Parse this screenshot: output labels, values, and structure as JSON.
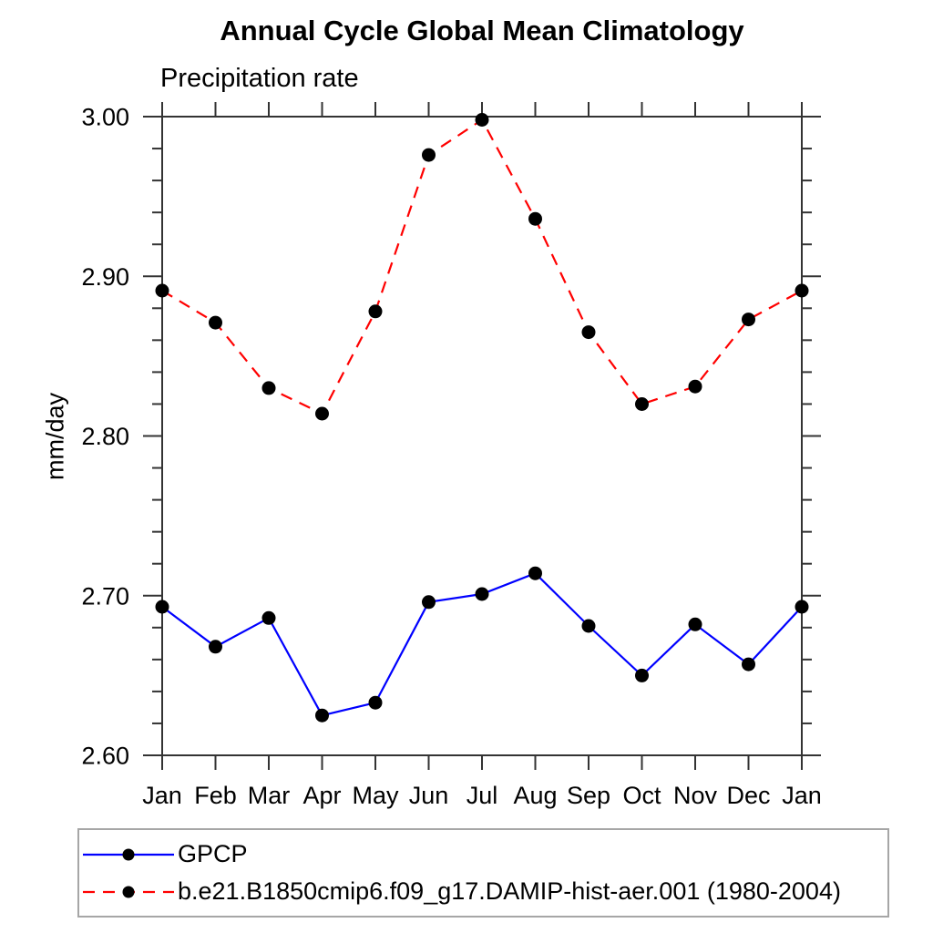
{
  "chart_data": {
    "type": "line",
    "title": "Annual Cycle Global Mean Climatology",
    "subtitle": "Precipitation rate",
    "xlabel": "",
    "ylabel": "mm/day",
    "categories": [
      "Jan",
      "Feb",
      "Mar",
      "Apr",
      "May",
      "Jun",
      "Jul",
      "Aug",
      "Sep",
      "Oct",
      "Nov",
      "Dec",
      "Jan"
    ],
    "ylim": [
      2.6,
      3.0
    ],
    "yticks": [
      2.6,
      2.7,
      2.8,
      2.9,
      3.0
    ],
    "ytick_labels": [
      "2.60",
      "2.70",
      "2.80",
      "2.90",
      "3.00"
    ],
    "y_minor_step": 0.02,
    "grid": false,
    "legend_position": "bottom-left",
    "axis_color": "#333333",
    "series": [
      {
        "name": "GPCP",
        "color": "#0000ff",
        "line_style": "solid",
        "marker": "filled-circle",
        "marker_color": "#000000",
        "values": [
          2.693,
          2.668,
          2.686,
          2.625,
          2.633,
          2.696,
          2.701,
          2.714,
          2.681,
          2.65,
          2.682,
          2.657,
          2.693
        ]
      },
      {
        "name": "b.e21.B1850cmip6.f09_g17.DAMIP-hist-aer.001 (1980-2004)",
        "color": "#ff0000",
        "line_style": "dashed",
        "marker": "filled-circle",
        "marker_color": "#000000",
        "values": [
          2.891,
          2.871,
          2.83,
          2.814,
          2.878,
          2.976,
          2.998,
          2.936,
          2.865,
          2.82,
          2.831,
          2.873,
          2.891
        ]
      }
    ]
  }
}
